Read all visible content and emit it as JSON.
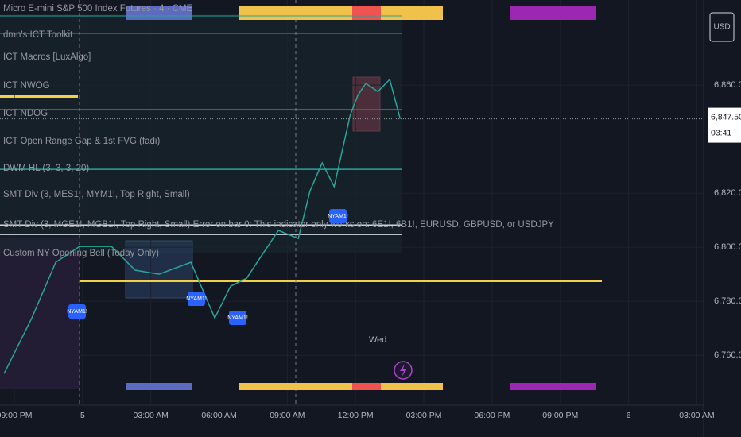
{
  "header": {
    "title": "Micro E-mini S&P 500 Index Futures · 4 · CME",
    "currency": "USD"
  },
  "indicators": [
    "dmn's ICT Toolkit",
    "ICT Macros [LuxAlgo]",
    "ICT NWOG",
    "ICT NDOG",
    "ICT Open Range Gap & 1st FVG (fadi)",
    "DWM HL (3, 3, 3, 20)",
    "SMT Div (3, MES1!, MYM1!, Top Right, Small)",
    "SMT Div (3, MGE1!, MGB1!, Top Right, Small) Error on bar 0: This indicator only works on: 6E1!, 6B1!, EURUSD, GBPUSD, or USDJPY",
    "Custom NY Opening Bell (Today Only)"
  ],
  "chart_data": {
    "type": "line",
    "color": "#26a69a",
    "x": [
      -3.45,
      -2.23,
      -1.18,
      -0.13,
      1.27,
      2.31,
      3.36,
      4.76,
      5.81,
      6.51,
      7.21,
      7.91,
      8.61,
      9.48,
      10.0,
      10.53,
      11.06,
      11.41,
      11.76,
      12.1,
      12.45,
      12.98,
      13.5,
      13.96
    ],
    "values": [
      6753.2,
      6773.8,
      6794.4,
      6800.3,
      6800.3,
      6791.5,
      6790,
      6794.4,
      6773.8,
      6785.6,
      6788.5,
      6797.4,
      6806.2,
      6803.2,
      6820.9,
      6831.2,
      6822.4,
      6835.6,
      6848.8,
      6856.2,
      6860.6,
      6857.6,
      6862.1,
      6847.5
    ],
    "xlim": [
      -3.63,
      27.3
    ],
    "xticks": [
      {
        "value": -3,
        "label": "09:00 PM"
      },
      {
        "value": 0,
        "label": "5"
      },
      {
        "value": 3,
        "label": "03:00 AM"
      },
      {
        "value": 6,
        "label": "06:00 AM"
      },
      {
        "value": 9,
        "label": "09:00 AM"
      },
      {
        "value": 12,
        "label": "12:00 PM"
      },
      {
        "value": 15,
        "label": "03:00 PM"
      },
      {
        "value": 18,
        "label": "06:00 PM"
      },
      {
        "value": 21,
        "label": "09:00 PM"
      },
      {
        "value": 24,
        "label": "6"
      },
      {
        "value": 27,
        "label": "03:00 AM"
      }
    ],
    "ylim": [
      6741.5,
      6891.5
    ],
    "yticks": [
      {
        "value": 6760,
        "label": "6,760.00"
      },
      {
        "value": 6780,
        "label": "6,780.00"
      },
      {
        "value": 6800,
        "label": "6,800.00"
      },
      {
        "value": 6820,
        "label": "6,820.00"
      },
      {
        "value": 6860,
        "label": "6,860.00"
      }
    ],
    "last_price": {
      "value": 6847.5,
      "label": "6,847.50"
    },
    "countdown": "03:41",
    "levels": [
      {
        "value": 6787.4,
        "color": "#f2d04a"
      },
      {
        "value": 6808.2,
        "color": "#d1d4dc"
      },
      {
        "value": 6804.7,
        "color": "#d1d4dc"
      },
      {
        "value": 6828.8,
        "color": "#26a69a"
      },
      {
        "value": 6851,
        "color": "#9c27b0"
      }
    ],
    "grid": true,
    "annotations": [
      "Wed",
      "NYAM1!",
      "NYAM1!",
      "NYAM1!",
      "NYAM1!"
    ]
  }
}
